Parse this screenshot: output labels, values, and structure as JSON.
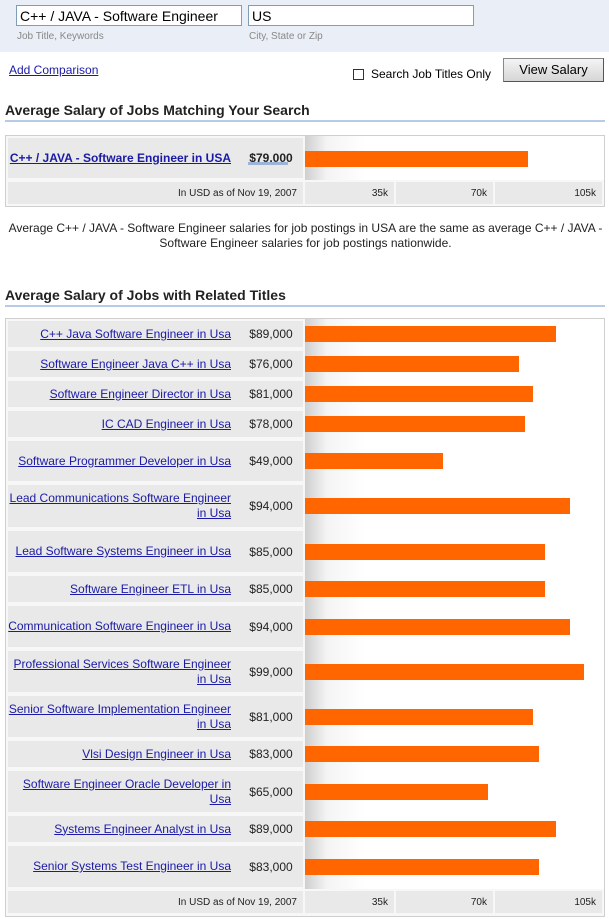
{
  "search": {
    "title_value": "C++ / JAVA - Software Engineer",
    "title_help": "Job Title, Keywords",
    "location_value": "US",
    "location_help": "City, State or Zip"
  },
  "controls": {
    "add_comparison": "Add Comparison",
    "checkbox_label": "Search Job Titles Only",
    "view_salary": "View Salary"
  },
  "matching": {
    "heading": "Average Salary of Jobs Matching Your Search",
    "title": "C++ / JAVA - Software Engineer in USA",
    "salary": "$79,000",
    "value": 79000,
    "caption": "In USD as of Nov 19, 2007",
    "ticks": [
      "35k",
      "70k",
      "105k"
    ]
  },
  "note": "Average C++ / JAVA - Software Engineer salaries for job postings in USA are the same as average C++ / JAVA - Software Engineer salaries for job postings nationwide.",
  "related": {
    "heading": "Average Salary of Jobs with Related Titles",
    "caption": "In USD as of Nov 19, 2007",
    "ticks": [
      "35k",
      "70k",
      "105k"
    ],
    "rows": [
      {
        "title": "C++ Java Software Engineer in Usa",
        "salary": "$89,000",
        "value": 89000
      },
      {
        "title": "Software Engineer Java C++ in Usa",
        "salary": "$76,000",
        "value": 76000
      },
      {
        "title": "Software Engineer Director in Usa",
        "salary": "$81,000",
        "value": 81000
      },
      {
        "title": "IC CAD Engineer in Usa",
        "salary": "$78,000",
        "value": 78000
      },
      {
        "title": "Software Programmer Developer in Usa",
        "salary": "$49,000",
        "value": 49000
      },
      {
        "title": "Lead Communications Software Engineer in Usa",
        "salary": "$94,000",
        "value": 94000
      },
      {
        "title": "Lead Software Systems Engineer in Usa",
        "salary": "$85,000",
        "value": 85000
      },
      {
        "title": "Software Engineer ETL in Usa",
        "salary": "$85,000",
        "value": 85000
      },
      {
        "title": "Communication Software Engineer in Usa",
        "salary": "$94,000",
        "value": 94000
      },
      {
        "title": "Professional Services Software Engineer in Usa",
        "salary": "$99,000",
        "value": 99000
      },
      {
        "title": "Senior Software Implementation Engineer in Usa",
        "salary": "$81,000",
        "value": 81000
      },
      {
        "title": "Vlsi Design Engineer in Usa",
        "salary": "$83,000",
        "value": 83000
      },
      {
        "title": "Software Engineer Oracle Developer in Usa",
        "salary": "$65,000",
        "value": 65000
      },
      {
        "title": "Systems Engineer Analyst in Usa",
        "salary": "$89,000",
        "value": 89000
      },
      {
        "title": "Senior Systems Test Engineer in Usa",
        "salary": "$83,000",
        "value": 83000
      }
    ]
  },
  "colors": {
    "bar": "#ff6600",
    "link": "#1a1aa6"
  }
}
